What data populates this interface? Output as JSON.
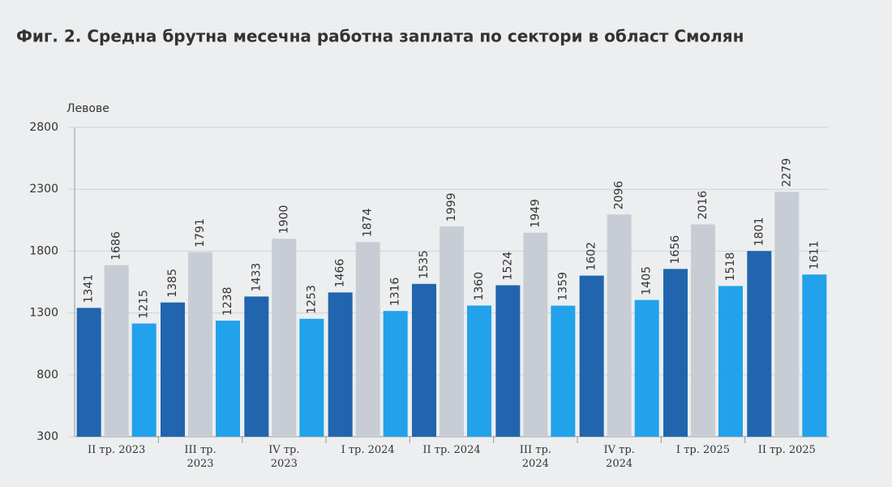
{
  "chart_data": {
    "type": "bar",
    "title": "Фиг. 2. Средна брутна месечна работна заплата по сектори в област Смолян",
    "y_label": "Левове",
    "categories": [
      "II тр. 2023",
      "III тр.\n2023",
      "IV тр.\n2023",
      "I тр. 2024",
      "II тр. 2024",
      "III тр.\n2024",
      "IV тр.\n2024",
      "I тр. 2025",
      "II тр. 2025"
    ],
    "series": [
      {
        "color": "#2065ad",
        "values": [
          1341,
          1385,
          1433,
          1466,
          1535,
          1524,
          1602,
          1656,
          1801
        ]
      },
      {
        "color": "#c8cdd5",
        "values": [
          1686,
          1791,
          1900,
          1874,
          1999,
          1949,
          2096,
          2016,
          2279
        ]
      },
      {
        "color": "#22a2ea",
        "values": [
          1215,
          1238,
          1253,
          1316,
          1360,
          1359,
          1405,
          1518,
          1611
        ]
      }
    ],
    "ylim": [
      300,
      2800
    ],
    "yticks": [
      300,
      800,
      1300,
      1800,
      2300,
      2800
    ],
    "grid": true
  }
}
